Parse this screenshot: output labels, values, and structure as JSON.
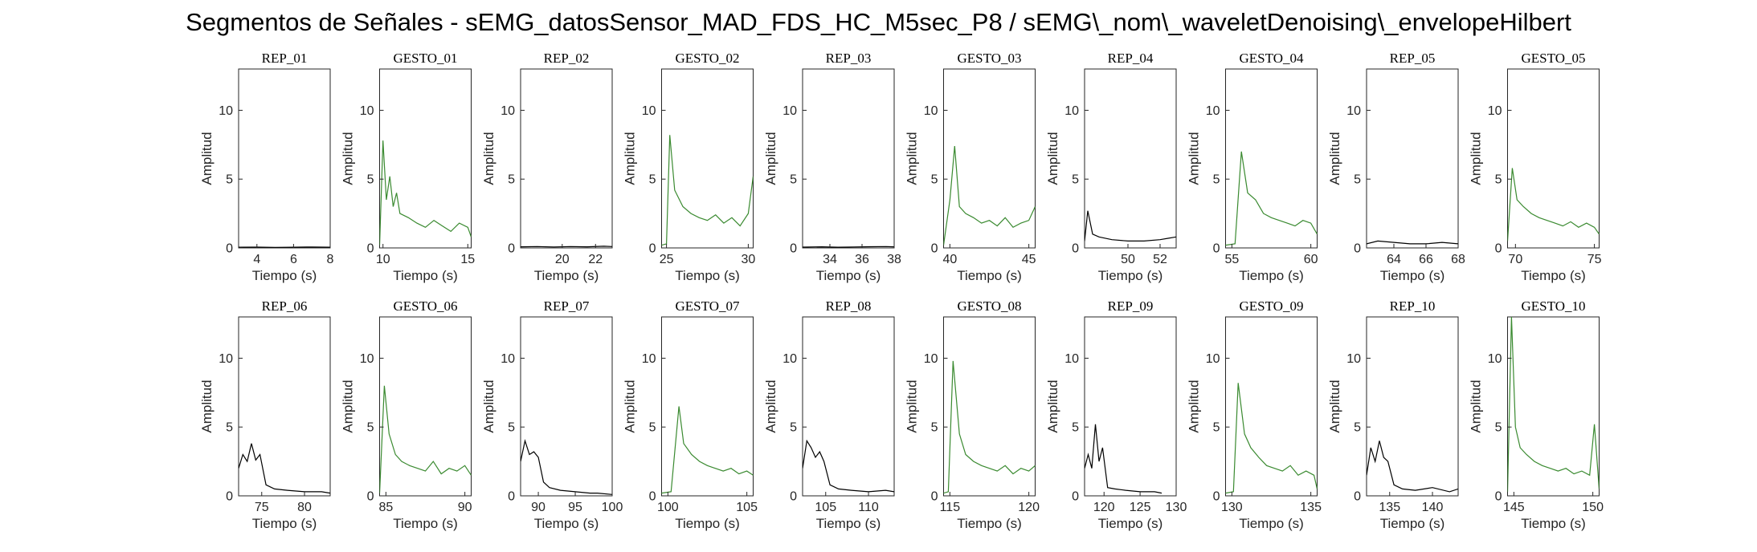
{
  "figure": {
    "title": "Segmentos de Señales - sEMG_datosSensor_MAD_FDS_HC_M5sec_P8 / sEMG\\_nom\\_waveletDenoising\\_envelopeHilbert",
    "colors": {
      "rep": "#000000",
      "gesto": "#3a8a30"
    }
  },
  "chart_data": [
    {
      "type": "line",
      "title": "REP_01",
      "xlabel": "Tiempo (s)",
      "ylabel": "Amplitud",
      "xlim": [
        3,
        8
      ],
      "ylim": [
        0,
        13
      ],
      "xticks": [
        4,
        6,
        8
      ],
      "yticks": [
        0,
        5,
        10
      ],
      "series": [
        {
          "color": "rep",
          "x": [
            3,
            4,
            5,
            6,
            7,
            8
          ],
          "y": [
            0.05,
            0.06,
            0.04,
            0.05,
            0.07,
            0.05
          ]
        }
      ]
    },
    {
      "type": "line",
      "title": "GESTO_01",
      "xlabel": "Tiempo (s)",
      "ylabel": "Amplitud",
      "xlim": [
        9.8,
        15.2
      ],
      "ylim": [
        0,
        13
      ],
      "xticks": [
        10,
        15
      ],
      "yticks": [
        0,
        5,
        10
      ],
      "series": [
        {
          "color": "gesto",
          "x": [
            9.8,
            10,
            10.2,
            10.4,
            10.6,
            10.8,
            11,
            11.5,
            12,
            12.5,
            13,
            13.5,
            14,
            14.5,
            15,
            15.2
          ],
          "y": [
            0.2,
            7.8,
            3.5,
            5.2,
            3.0,
            4.0,
            2.5,
            2.2,
            1.8,
            1.5,
            2.0,
            1.6,
            1.2,
            1.8,
            1.5,
            0.8
          ]
        }
      ]
    },
    {
      "type": "line",
      "title": "REP_02",
      "xlabel": "Tiempo (s)",
      "ylabel": "Amplitud",
      "xlim": [
        17.5,
        23
      ],
      "ylim": [
        0,
        13
      ],
      "xticks": [
        20,
        22
      ],
      "yticks": [
        0,
        5,
        10
      ],
      "series": [
        {
          "color": "rep",
          "x": [
            17.5,
            18.5,
            19.5,
            20.5,
            21.5,
            22.5,
            23
          ],
          "y": [
            0.08,
            0.1,
            0.07,
            0.1,
            0.08,
            0.12,
            0.1
          ]
        }
      ]
    },
    {
      "type": "line",
      "title": "GESTO_02",
      "xlabel": "Tiempo (s)",
      "ylabel": "Amplitud",
      "xlim": [
        24.7,
        30.3
      ],
      "ylim": [
        0,
        13
      ],
      "xticks": [
        25,
        30
      ],
      "yticks": [
        0,
        5,
        10
      ],
      "series": [
        {
          "color": "gesto",
          "x": [
            24.7,
            25,
            25.2,
            25.5,
            26,
            26.5,
            27,
            27.5,
            28,
            28.5,
            29,
            29.5,
            30,
            30.3
          ],
          "y": [
            0.2,
            0.3,
            8.2,
            4.2,
            3.0,
            2.5,
            2.2,
            2.0,
            2.4,
            1.8,
            2.2,
            1.6,
            2.5,
            5.2
          ]
        }
      ]
    },
    {
      "type": "line",
      "title": "REP_03",
      "xlabel": "Tiempo (s)",
      "ylabel": "Amplitud",
      "xlim": [
        32.3,
        38
      ],
      "ylim": [
        0,
        13
      ],
      "xticks": [
        34,
        36,
        38
      ],
      "yticks": [
        0,
        5,
        10
      ],
      "series": [
        {
          "color": "rep",
          "x": [
            32.3,
            33.5,
            34.5,
            35.5,
            36.5,
            37.5,
            38
          ],
          "y": [
            0.06,
            0.08,
            0.05,
            0.07,
            0.09,
            0.1,
            0.08
          ]
        }
      ]
    },
    {
      "type": "line",
      "title": "GESTO_03",
      "xlabel": "Tiempo (s)",
      "ylabel": "Amplitud",
      "xlim": [
        39.6,
        45.4
      ],
      "ylim": [
        0,
        13
      ],
      "xticks": [
        40,
        45
      ],
      "yticks": [
        0,
        5,
        10
      ],
      "series": [
        {
          "color": "gesto",
          "x": [
            39.6,
            40,
            40.3,
            40.6,
            41,
            41.5,
            42,
            42.5,
            43,
            43.5,
            44,
            44.5,
            45,
            45.4
          ],
          "y": [
            0.2,
            3.5,
            7.4,
            3.0,
            2.5,
            2.2,
            1.8,
            2.0,
            1.6,
            2.2,
            1.5,
            1.8,
            2.0,
            3.0
          ]
        }
      ]
    },
    {
      "type": "line",
      "title": "REP_04",
      "xlabel": "Tiempo (s)",
      "ylabel": "Amplitud",
      "xlim": [
        47.3,
        53
      ],
      "ylim": [
        0,
        13
      ],
      "xticks": [
        50,
        52
      ],
      "yticks": [
        0,
        5,
        10
      ],
      "series": [
        {
          "color": "rep",
          "x": [
            47.3,
            47.5,
            47.8,
            48.2,
            49,
            50,
            51,
            52,
            52.5,
            53
          ],
          "y": [
            0.5,
            2.7,
            1.0,
            0.8,
            0.6,
            0.5,
            0.5,
            0.6,
            0.7,
            0.8
          ]
        }
      ]
    },
    {
      "type": "line",
      "title": "GESTO_04",
      "xlabel": "Tiempo (s)",
      "ylabel": "Amplitud",
      "xlim": [
        54.6,
        60.4
      ],
      "ylim": [
        0,
        13
      ],
      "xticks": [
        55,
        60
      ],
      "yticks": [
        0,
        5,
        10
      ],
      "series": [
        {
          "color": "gesto",
          "x": [
            54.6,
            55.2,
            55.6,
            56,
            56.5,
            57,
            57.5,
            58,
            58.5,
            59,
            59.5,
            60,
            60.4
          ],
          "y": [
            0.2,
            0.3,
            7.0,
            4.0,
            3.5,
            2.5,
            2.2,
            2.0,
            1.8,
            1.6,
            2.0,
            1.8,
            1.0
          ]
        }
      ]
    },
    {
      "type": "line",
      "title": "REP_05",
      "xlabel": "Tiempo (s)",
      "ylabel": "Amplitud",
      "xlim": [
        62.3,
        68
      ],
      "ylim": [
        0,
        13
      ],
      "xticks": [
        64,
        66,
        68
      ],
      "yticks": [
        0,
        5,
        10
      ],
      "series": [
        {
          "color": "rep",
          "x": [
            62.3,
            63,
            64,
            65,
            66,
            67,
            68
          ],
          "y": [
            0.3,
            0.5,
            0.4,
            0.3,
            0.3,
            0.4,
            0.3
          ]
        }
      ]
    },
    {
      "type": "line",
      "title": "GESTO_05",
      "xlabel": "Tiempo (s)",
      "ylabel": "Amplitud",
      "xlim": [
        69.5,
        75.3
      ],
      "ylim": [
        0,
        13
      ],
      "xticks": [
        70,
        75
      ],
      "yticks": [
        0,
        5,
        10
      ],
      "series": [
        {
          "color": "gesto",
          "x": [
            69.5,
            69.8,
            70.1,
            70.5,
            71,
            71.5,
            72,
            72.5,
            73,
            73.5,
            74,
            74.5,
            75,
            75.3
          ],
          "y": [
            0.5,
            5.8,
            3.5,
            3.0,
            2.5,
            2.2,
            2.0,
            1.8,
            1.6,
            1.9,
            1.5,
            1.8,
            1.5,
            1.0
          ]
        }
      ]
    },
    {
      "type": "line",
      "title": "REP_06",
      "xlabel": "Tiempo (s)",
      "ylabel": "Amplitud",
      "xlim": [
        72.3,
        83
      ],
      "ylim": [
        0,
        13
      ],
      "xticks": [
        75,
        80
      ],
      "yticks": [
        0,
        5,
        10
      ],
      "series": [
        {
          "color": "rep",
          "x": [
            72.3,
            72.8,
            73.3,
            73.8,
            74.3,
            74.8,
            75.5,
            76.5,
            78,
            80,
            82,
            83
          ],
          "y": [
            2.0,
            3.0,
            2.5,
            3.8,
            2.6,
            3.0,
            0.8,
            0.5,
            0.4,
            0.3,
            0.3,
            0.2
          ]
        }
      ]
    },
    {
      "type": "line",
      "title": "GESTO_06",
      "xlabel": "Tiempo (s)",
      "ylabel": "Amplitud",
      "xlim": [
        84.6,
        90.4
      ],
      "ylim": [
        0,
        13
      ],
      "xticks": [
        85,
        90
      ],
      "yticks": [
        0,
        5,
        10
      ],
      "series": [
        {
          "color": "gesto",
          "x": [
            84.6,
            84.9,
            85.2,
            85.6,
            86,
            86.5,
            87,
            87.5,
            88,
            88.5,
            89,
            89.5,
            90,
            90.4
          ],
          "y": [
            0.2,
            8.0,
            4.5,
            3.0,
            2.5,
            2.2,
            2.0,
            1.8,
            2.5,
            1.6,
            2.0,
            1.8,
            2.2,
            1.5
          ]
        }
      ]
    },
    {
      "type": "line",
      "title": "REP_07",
      "xlabel": "Tiempo (s)",
      "ylabel": "Amplitud",
      "xlim": [
        87.6,
        100
      ],
      "ylim": [
        0,
        13
      ],
      "xticks": [
        90,
        95,
        100
      ],
      "yticks": [
        0,
        5,
        10
      ],
      "series": [
        {
          "color": "rep",
          "x": [
            87.6,
            88.2,
            88.8,
            89.4,
            90,
            90.7,
            91.5,
            93,
            95,
            97,
            98,
            100
          ],
          "y": [
            2.5,
            4.0,
            3.0,
            3.2,
            2.8,
            1.0,
            0.6,
            0.4,
            0.3,
            0.2,
            0.2,
            0.1
          ]
        }
      ]
    },
    {
      "type": "line",
      "title": "GESTO_07",
      "xlabel": "Tiempo (s)",
      "ylabel": "Amplitud",
      "xlim": [
        99.6,
        105.4
      ],
      "ylim": [
        0,
        13
      ],
      "xticks": [
        100,
        105
      ],
      "yticks": [
        0,
        5,
        10
      ],
      "series": [
        {
          "color": "gesto",
          "x": [
            99.6,
            100.2,
            100.7,
            101,
            101.5,
            102,
            102.5,
            103,
            103.5,
            104,
            104.5,
            105,
            105.4
          ],
          "y": [
            0.2,
            0.3,
            6.5,
            3.8,
            3.0,
            2.5,
            2.2,
            2.0,
            1.8,
            2.0,
            1.6,
            1.8,
            1.5
          ]
        }
      ]
    },
    {
      "type": "line",
      "title": "REP_08",
      "xlabel": "Tiempo (s)",
      "ylabel": "Amplitud",
      "xlim": [
        102.3,
        113
      ],
      "ylim": [
        0,
        13
      ],
      "xticks": [
        105,
        110
      ],
      "yticks": [
        0,
        5,
        10
      ],
      "series": [
        {
          "color": "rep",
          "x": [
            102.3,
            102.8,
            103.3,
            103.8,
            104.3,
            104.8,
            105.5,
            106.5,
            108,
            110,
            112,
            113
          ],
          "y": [
            2.0,
            4.0,
            3.5,
            2.8,
            3.2,
            2.5,
            0.8,
            0.5,
            0.4,
            0.3,
            0.4,
            0.3
          ]
        }
      ]
    },
    {
      "type": "line",
      "title": "GESTO_08",
      "xlabel": "Tiempo (s)",
      "ylabel": "Amplitud",
      "xlim": [
        114.6,
        120.4
      ],
      "ylim": [
        0,
        13
      ],
      "xticks": [
        115,
        120
      ],
      "yticks": [
        0,
        5,
        10
      ],
      "series": [
        {
          "color": "gesto",
          "x": [
            114.6,
            114.9,
            115.2,
            115.6,
            116,
            116.5,
            117,
            117.5,
            118,
            118.5,
            119,
            119.5,
            120,
            120.4
          ],
          "y": [
            0.2,
            0.3,
            9.8,
            4.5,
            3.0,
            2.5,
            2.2,
            2.0,
            1.8,
            2.2,
            1.6,
            2.0,
            1.8,
            2.2
          ]
        }
      ]
    },
    {
      "type": "line",
      "title": "REP_09",
      "xlabel": "Tiempo (s)",
      "ylabel": "Amplitud",
      "xlim": [
        117.3,
        130
      ],
      "ylim": [
        0,
        13
      ],
      "xticks": [
        120,
        125,
        130
      ],
      "yticks": [
        0,
        5,
        10
      ],
      "series": [
        {
          "color": "rep",
          "x": [
            117.3,
            117.8,
            118.3,
            118.8,
            119.3,
            119.8,
            120.5,
            121.5,
            123,
            125,
            127,
            128
          ],
          "y": [
            2.0,
            3.0,
            2.0,
            5.2,
            2.5,
            3.5,
            0.6,
            0.5,
            0.4,
            0.3,
            0.3,
            0.2
          ]
        }
      ]
    },
    {
      "type": "line",
      "title": "GESTO_09",
      "xlabel": "Tiempo (s)",
      "ylabel": "Amplitud",
      "xlim": [
        129.6,
        135.4
      ],
      "ylim": [
        0,
        13
      ],
      "xticks": [
        130,
        135
      ],
      "yticks": [
        0,
        5,
        10
      ],
      "series": [
        {
          "color": "gesto",
          "x": [
            129.6,
            130.1,
            130.4,
            130.8,
            131.2,
            131.7,
            132.2,
            132.7,
            133.2,
            133.7,
            134.2,
            134.7,
            135.2,
            135.4
          ],
          "y": [
            0.2,
            0.3,
            8.2,
            4.5,
            3.5,
            2.8,
            2.2,
            2.0,
            1.8,
            2.2,
            1.5,
            1.8,
            1.5,
            0.5
          ]
        }
      ]
    },
    {
      "type": "line",
      "title": "REP_10",
      "xlabel": "Tiempo (s)",
      "ylabel": "Amplitud",
      "xlim": [
        132.3,
        143
      ],
      "ylim": [
        0,
        13
      ],
      "xticks": [
        135,
        140
      ],
      "yticks": [
        0,
        5,
        10
      ],
      "series": [
        {
          "color": "rep",
          "x": [
            132.3,
            132.8,
            133.3,
            133.8,
            134.3,
            134.8,
            135.5,
            136.5,
            138,
            140,
            142,
            143
          ],
          "y": [
            1.5,
            3.5,
            2.5,
            4.0,
            2.8,
            2.5,
            0.8,
            0.5,
            0.4,
            0.6,
            0.3,
            0.5
          ]
        }
      ]
    },
    {
      "type": "line",
      "title": "GESTO_10",
      "xlabel": "Tiempo (s)",
      "ylabel": "Amplitud",
      "xlim": [
        144.6,
        150.4
      ],
      "ylim": [
        0,
        13
      ],
      "xticks": [
        145,
        150
      ],
      "yticks": [
        0,
        5,
        10
      ],
      "series": [
        {
          "color": "gesto",
          "x": [
            144.6,
            144.85,
            145.1,
            145.4,
            145.8,
            146.3,
            146.8,
            147.3,
            147.8,
            148.3,
            148.8,
            149.3,
            149.8,
            150.1,
            150.4
          ],
          "y": [
            0.3,
            13.0,
            5.0,
            3.5,
            3.0,
            2.5,
            2.2,
            2.0,
            1.8,
            2.0,
            1.6,
            1.8,
            1.5,
            5.2,
            0.5
          ]
        }
      ]
    }
  ]
}
